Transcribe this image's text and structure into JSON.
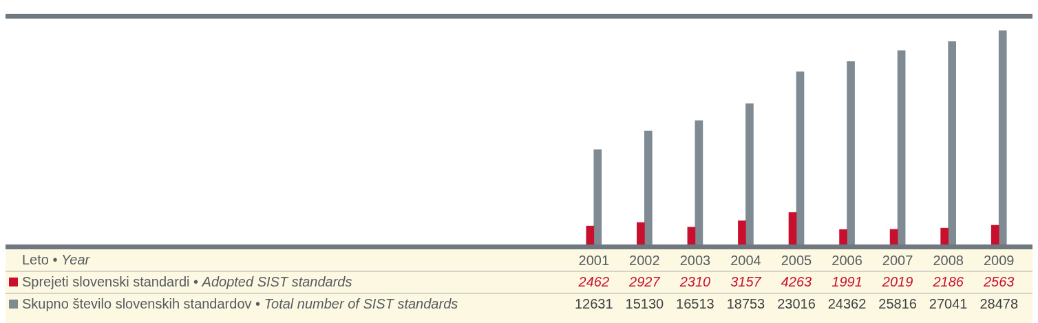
{
  "chart_data": {
    "type": "bar",
    "annotations": [
      "Leto • Year"
    ],
    "categories": [
      "2001",
      "2002",
      "2003",
      "2004",
      "2005",
      "2006",
      "2007",
      "2008",
      "2009"
    ],
    "series": [
      {
        "name": "Sprejeti slovenski standardi • Adopted SIST standards",
        "color": "#c8102e",
        "values": [
          2462,
          2927,
          2310,
          3157,
          4263,
          1991,
          2019,
          2186,
          2563
        ]
      },
      {
        "name": "Skupno število slovenskih standardov • Total number of SIST standards",
        "color": "#7f8a93",
        "values": [
          12631,
          15130,
          16513,
          18753,
          23016,
          24362,
          25816,
          27041,
          28478
        ]
      }
    ],
    "data_labels": true,
    "tick_labels": "x",
    "grid": false,
    "legend": "bottom left"
  }
}
